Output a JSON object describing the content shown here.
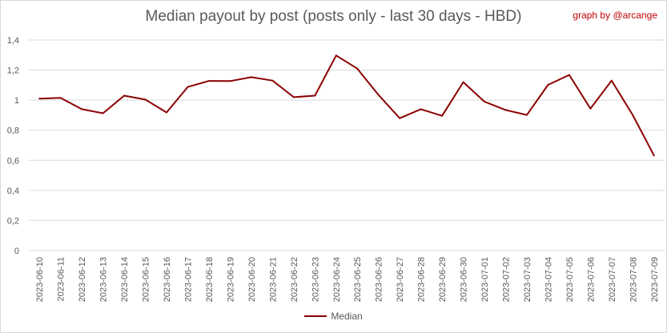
{
  "title": "Median payout by post (posts only - last 30 days - HBD)",
  "credit": "graph by @arcange",
  "colors": {
    "series": "#8b0000",
    "credit": "#c00000",
    "grid": "#d9d9d9",
    "axis_text": "#595959"
  },
  "chart_data": {
    "type": "line",
    "title": "Median payout by post (posts only - last 30 days - HBD)",
    "xlabel": "",
    "ylabel": "",
    "ylim": [
      0,
      1.4
    ],
    "yticks": [
      0,
      0.2,
      0.4,
      0.6,
      0.8,
      1,
      1.2,
      1.4
    ],
    "ytick_labels": [
      "0",
      "0,2",
      "0,4",
      "0,6",
      "0,8",
      "1",
      "1,2",
      "1,4"
    ],
    "grid": true,
    "legend_position": "bottom",
    "x": [
      "2023-06-10",
      "2023-06-11",
      "2023-06-12",
      "2023-06-13",
      "2023-06-14",
      "2023-06-15",
      "2023-06-16",
      "2023-06-17",
      "2023-06-18",
      "2023-06-19",
      "2023-06-20",
      "2023-06-21",
      "2023-06-22",
      "2023-06-23",
      "2023-06-24",
      "2023-06-25",
      "2023-06-26",
      "2023-06-27",
      "2023-06-28",
      "2023-06-29",
      "2023-06-30",
      "2023-07-01",
      "2023-07-02",
      "2023-07-03",
      "2023-07-04",
      "2023-07-05",
      "2023-07-06",
      "2023-07-07",
      "2023-07-08",
      "2023-07-09"
    ],
    "series": [
      {
        "name": "Median",
        "values": [
          1.01,
          1.015,
          0.94,
          0.913,
          1.03,
          1.004,
          0.918,
          1.088,
          1.128,
          1.127,
          1.153,
          1.13,
          1.02,
          1.03,
          1.297,
          1.21,
          1.035,
          0.88,
          0.94,
          0.896,
          1.12,
          0.99,
          0.935,
          0.902,
          1.102,
          1.168,
          0.944,
          1.13,
          0.9,
          0.632
        ]
      }
    ]
  }
}
